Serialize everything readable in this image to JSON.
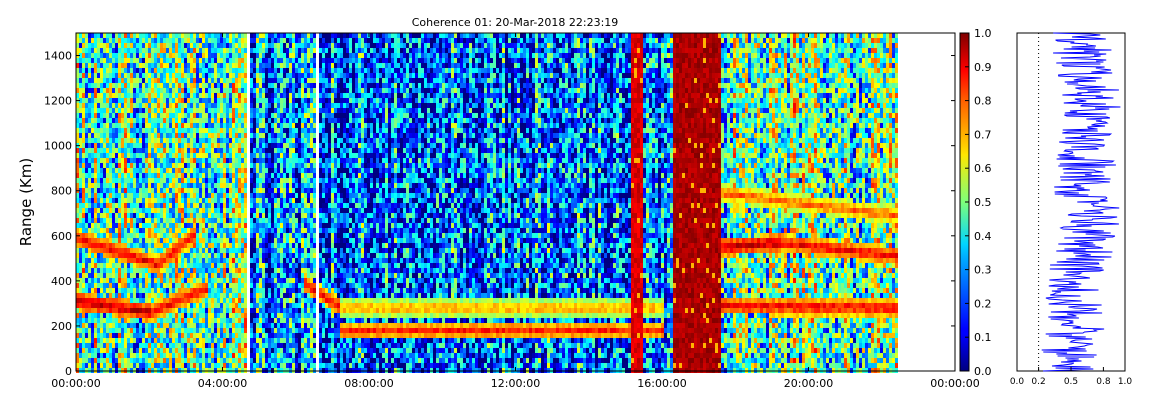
{
  "chart_data": [
    {
      "type": "heatmap",
      "title": "Coherence 01: 20-Mar-2018 22:23:19",
      "ylabel": "Range (Km)",
      "xlabel": "",
      "x_ticks": [
        "00:00:00",
        "04:00:00",
        "08:00:00",
        "12:00:00",
        "16:00:00",
        "20:00:00",
        "00:00:00"
      ],
      "x_range_hours": [
        0,
        24
      ],
      "y_ticks": [
        0,
        200,
        400,
        600,
        800,
        1000,
        1200,
        1400
      ],
      "ylim": [
        0,
        1500
      ],
      "data_end_hour": 22.4,
      "colorbar": {
        "label": "",
        "range": [
          0.0,
          1.0
        ],
        "ticks": [
          "0.0",
          "0.1",
          "0.2",
          "0.3",
          "0.4",
          "0.5",
          "0.6",
          "0.7",
          "0.8",
          "0.9",
          "1.0"
        ],
        "colormap": "jet"
      },
      "features": [
        {
          "type": "band",
          "hour_start": 0.0,
          "hour_end": 2.2,
          "range_start": 600,
          "range_end": 480,
          "value": 0.9
        },
        {
          "type": "band",
          "hour_start": 2.2,
          "hour_end": 3.2,
          "range_start": 480,
          "range_end": 620,
          "value": 0.9
        },
        {
          "type": "band",
          "hour_start": 0.0,
          "hour_end": 2.0,
          "range_start": 320,
          "range_end": 270,
          "value": 0.95
        },
        {
          "type": "band",
          "hour_start": 2.0,
          "hour_end": 3.6,
          "range_start": 270,
          "range_end": 380,
          "value": 0.9
        },
        {
          "type": "band",
          "hour_start": 6.2,
          "hour_end": 7.2,
          "range_start": 400,
          "range_end": 290,
          "value": 0.9
        },
        {
          "type": "band",
          "hour_start": 7.2,
          "hour_end": 16.0,
          "range_start": 290,
          "range_end": 290,
          "value": 0.75
        },
        {
          "type": "band",
          "hour_start": 7.2,
          "hour_end": 16.0,
          "range_start": 190,
          "range_end": 190,
          "value": 0.85
        },
        {
          "type": "band",
          "hour_start": 17.6,
          "hour_end": 19.2,
          "range_start": 560,
          "range_end": 580,
          "value": 0.95
        },
        {
          "type": "band",
          "hour_start": 19.2,
          "hour_end": 22.4,
          "range_start": 580,
          "range_end": 520,
          "value": 0.9
        },
        {
          "type": "band",
          "hour_start": 17.6,
          "hour_end": 22.4,
          "range_start": 300,
          "range_end": 290,
          "value": 0.9
        },
        {
          "type": "band",
          "hour_start": 17.6,
          "hour_end": 22.4,
          "range_start": 800,
          "range_end": 700,
          "value": 0.8
        },
        {
          "type": "saturated_block",
          "hour_start": 16.3,
          "hour_end": 17.6,
          "value": 1.0
        },
        {
          "type": "saturated_column",
          "hour_start": 15.1,
          "hour_end": 15.4,
          "value": 0.95
        },
        {
          "type": "white_gap",
          "hour": 4.7
        },
        {
          "type": "white_gap",
          "hour": 6.55
        }
      ]
    },
    {
      "type": "line",
      "title": "",
      "xlabel": "",
      "ylabel": "",
      "x_ticks": [
        "0.0",
        "0.2",
        "0.5",
        "0.8",
        "1.0"
      ],
      "xlim": [
        0.0,
        1.0
      ],
      "ylim": [
        0,
        1500
      ],
      "reference_line_x": 0.2,
      "line_color": "#0000ff",
      "series": [
        {
          "range_km": [
            0,
            100,
            200,
            300,
            400,
            500,
            600,
            700,
            800,
            900,
            1000,
            1100,
            1200,
            1300,
            1400,
            1500
          ],
          "coherence": [
            0.45,
            0.5,
            0.55,
            0.55,
            0.5,
            0.6,
            0.65,
            0.7,
            0.6,
            0.65,
            0.6,
            0.65,
            0.7,
            0.65,
            0.6,
            0.6
          ]
        }
      ]
    }
  ]
}
